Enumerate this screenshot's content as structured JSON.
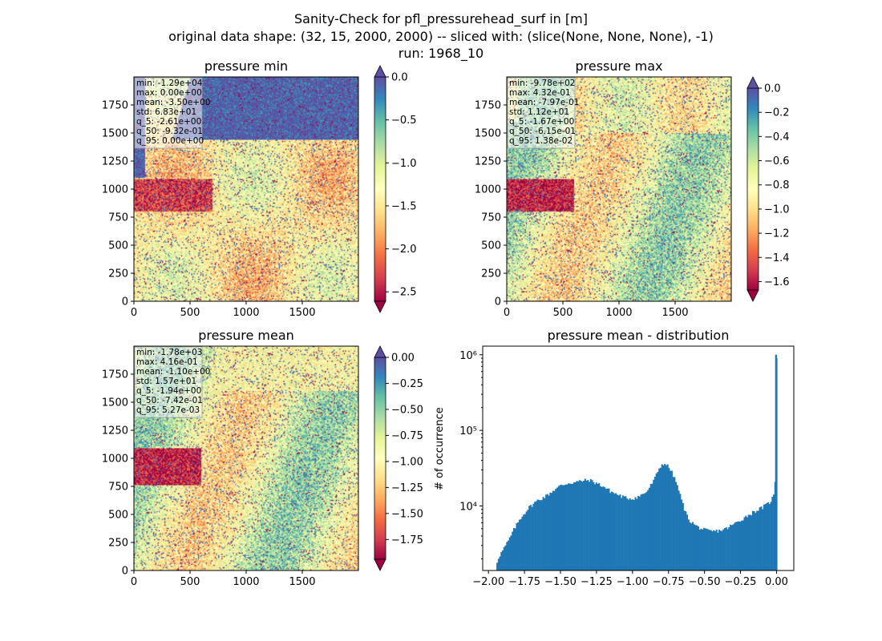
{
  "suptitle": {
    "line1": "Sanity-Check for pfl_pressurehead_surf in [m]",
    "line2": "original data shape: (32, 15, 2000, 2000) -- sliced with: (slice(None, None, None), -1)",
    "line3": "run: 1968_10"
  },
  "colors": {
    "spectral": [
      "#9e0142",
      "#d53e4f",
      "#f46d43",
      "#fdae61",
      "#fee08b",
      "#ffffbf",
      "#e6f598",
      "#abdda4",
      "#66c2a5",
      "#3288bd",
      "#5e4fa2"
    ],
    "hist_bar": "#1f77b4"
  },
  "chart_data": [
    {
      "type": "heatmap",
      "title": "pressure min",
      "xticks": [
        "0",
        "500",
        "1000",
        "1500"
      ],
      "yticks": [
        "0",
        "250",
        "500",
        "750",
        "1000",
        "1250",
        "1500",
        "1750"
      ],
      "xlim": [
        0,
        2000
      ],
      "ylim": [
        0,
        2000
      ],
      "colorbar": {
        "min": -2.61,
        "max": 0.0,
        "ticks": [
          "0.0",
          "−0.5",
          "−1.0",
          "−1.5",
          "−2.0",
          "−2.5"
        ],
        "tick_values": [
          0.0,
          -0.5,
          -1.0,
          -1.5,
          -2.0,
          -2.5
        ],
        "extend": "both"
      },
      "stats": [
        "min: -1.29e+04",
        "max: 0.00e+00",
        "mean: -3.50e+00",
        "std: 6.83e+01",
        "q_5: -2.61e+00",
        "q_50: -9.32e-01",
        "q_95: 0.00e+00"
      ]
    },
    {
      "type": "heatmap",
      "title": "pressure max",
      "xticks": [
        "0",
        "500",
        "1000",
        "1500"
      ],
      "yticks": [
        "0",
        "250",
        "500",
        "750",
        "1000",
        "1250",
        "1500",
        "1750"
      ],
      "xlim": [
        0,
        2000
      ],
      "ylim": [
        0,
        2000
      ],
      "colorbar": {
        "min": -1.67,
        "max": 0.0,
        "ticks": [
          "0.0",
          "−0.2",
          "−0.4",
          "−0.6",
          "−0.8",
          "−1.0",
          "−1.2",
          "−1.4",
          "−1.6"
        ],
        "tick_values": [
          0.0,
          -0.2,
          -0.4,
          -0.6,
          -0.8,
          -1.0,
          -1.2,
          -1.4,
          -1.6
        ],
        "extend": "both"
      },
      "stats": [
        "min: -9.78e+02",
        "max: 4.32e-01",
        "mean: -7.97e-01",
        "std: 1.12e+01",
        "q_5: -1.67e+00",
        "q_50: -6.15e-01",
        "q_95: 1.38e-02"
      ]
    },
    {
      "type": "heatmap",
      "title": "pressure mean",
      "xticks": [
        "0",
        "500",
        "1000",
        "1500"
      ],
      "yticks": [
        "0",
        "250",
        "500",
        "750",
        "1000",
        "1250",
        "1500",
        "1750"
      ],
      "xlim": [
        0,
        2000
      ],
      "ylim": [
        0,
        2000
      ],
      "colorbar": {
        "min": -1.94,
        "max": 0.0,
        "ticks": [
          "0.00",
          "−0.25",
          "−0.50",
          "−0.75",
          "−1.00",
          "−1.25",
          "−1.50",
          "−1.75"
        ],
        "tick_values": [
          0.0,
          -0.25,
          -0.5,
          -0.75,
          -1.0,
          -1.25,
          -1.5,
          -1.75
        ],
        "extend": "both"
      },
      "stats": [
        "min: -1.78e+03",
        "max: 4.16e-01",
        "mean: -1.10e+00",
        "std: 1.57e+01",
        "q_5: -1.94e+00",
        "q_50: -7.42e-01",
        "q_95: 5.27e-03"
      ]
    },
    {
      "type": "bar",
      "title": "pressure mean - distribution",
      "ylabel": "# of occurrence",
      "yscale": "log",
      "ylim": [
        1400,
        1300000
      ],
      "xlim": [
        -2.04,
        0.12
      ],
      "xticks": [
        "−2.00",
        "−1.75",
        "−1.50",
        "−1.25",
        "−1.00",
        "−0.75",
        "−0.50",
        "−0.25",
        "0.00"
      ],
      "xtick_values": [
        -2.0,
        -1.75,
        -1.5,
        -1.25,
        -1.0,
        -0.75,
        -0.5,
        -0.25,
        0.0
      ],
      "yticks": [
        "10⁴",
        "10⁵",
        "10⁶"
      ],
      "ytick_values": [
        10000,
        100000,
        1000000
      ],
      "bin_width": 0.0097,
      "profile": [
        [
          -1.945,
          1700
        ],
        [
          -1.93,
          2100
        ],
        [
          -1.9,
          2600
        ],
        [
          -1.86,
          3500
        ],
        [
          -1.82,
          5000
        ],
        [
          -1.78,
          6800
        ],
        [
          -1.72,
          9500
        ],
        [
          -1.66,
          11800
        ],
        [
          -1.6,
          13500
        ],
        [
          -1.55,
          16000
        ],
        [
          -1.5,
          18500
        ],
        [
          -1.45,
          20000
        ],
        [
          -1.4,
          20500
        ],
        [
          -1.35,
          21500
        ],
        [
          -1.3,
          22000
        ],
        [
          -1.25,
          20000
        ],
        [
          -1.2,
          18000
        ],
        [
          -1.15,
          15500
        ],
        [
          -1.1,
          14000
        ],
        [
          -1.05,
          12800
        ],
        [
          -1.0,
          12500
        ],
        [
          -0.95,
          13500
        ],
        [
          -0.9,
          15500
        ],
        [
          -0.85,
          22000
        ],
        [
          -0.81,
          33000
        ],
        [
          -0.78,
          37000
        ],
        [
          -0.75,
          33000
        ],
        [
          -0.72,
          26000
        ],
        [
          -0.69,
          19000
        ],
        [
          -0.66,
          12000
        ],
        [
          -0.63,
          8000
        ],
        [
          -0.6,
          6300
        ],
        [
          -0.55,
          5300
        ],
        [
          -0.5,
          4800
        ],
        [
          -0.45,
          4600
        ],
        [
          -0.4,
          4700
        ],
        [
          -0.35,
          5000
        ],
        [
          -0.3,
          5700
        ],
        [
          -0.25,
          6500
        ],
        [
          -0.2,
          7500
        ],
        [
          -0.15,
          8500
        ],
        [
          -0.1,
          9500
        ],
        [
          -0.05,
          11000
        ],
        [
          -0.02,
          13500
        ],
        [
          -0.01,
          20000
        ],
        [
          0.0,
          1000000
        ]
      ]
    }
  ]
}
